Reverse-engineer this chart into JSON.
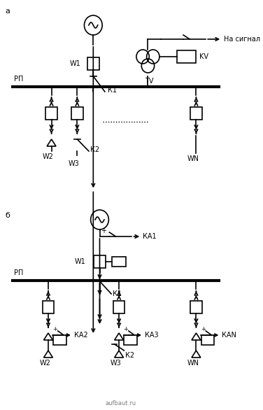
{
  "fig_width": 3.76,
  "fig_height": 5.86,
  "dpi": 100,
  "bg_color": "#ffffff",
  "line_color": "#000000",
  "label_a": "а",
  "label_b": "б",
  "text_na_signal": "На сигнал",
  "text_KV": "KV",
  "text_TV": "TV",
  "text_W1": "W1",
  "text_W2": "W2",
  "text_W3": "W3",
  "text_WN": "WN",
  "text_K1": "К1",
  "text_K2": "К2",
  "text_RP": "РП",
  "text_KA1": "КА1",
  "text_KA2": "КА2",
  "text_KA3": "КА3",
  "text_KAN": "КАN",
  "fontsize_label": 8,
  "fontsize_text": 7,
  "lw": 1.2,
  "lw_bus": 3.0
}
